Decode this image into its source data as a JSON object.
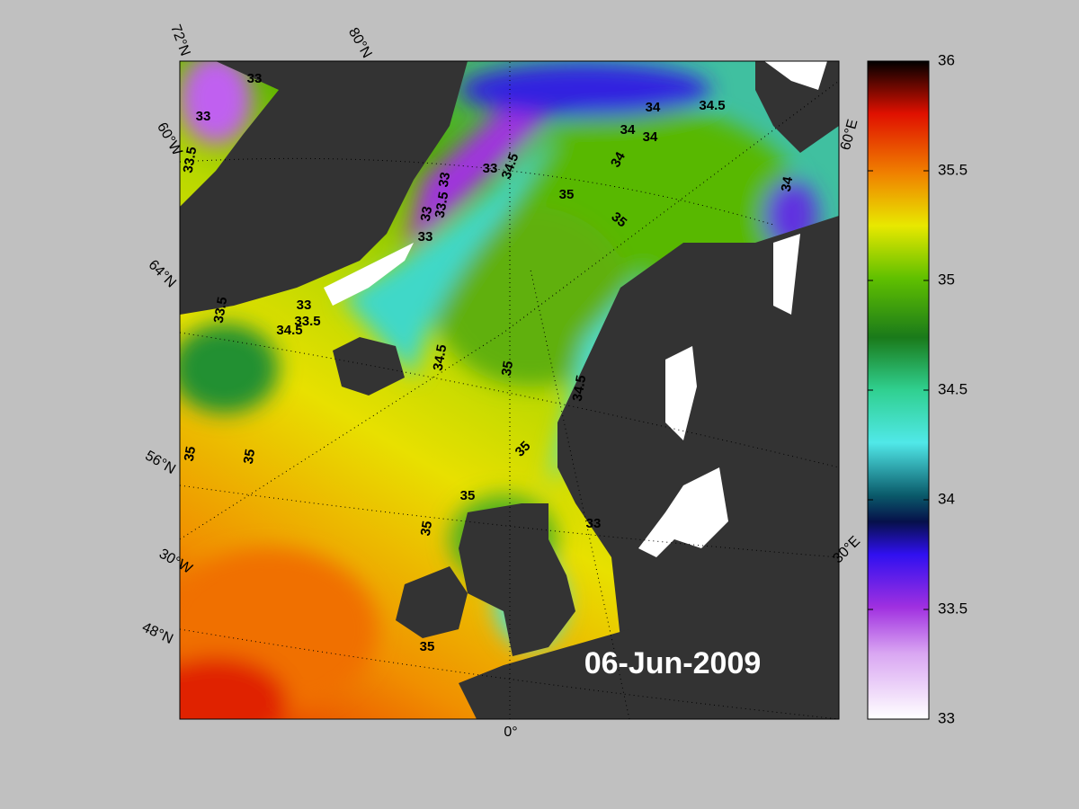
{
  "map": {
    "date": "06-Jun-2009",
    "graticule_labels": [
      "72°N",
      "80°N",
      "60°W",
      "64°N",
      "56°N",
      "30°W",
      "48°N",
      "0°",
      "30°E",
      "60°E"
    ],
    "contour_labels": [
      33,
      33,
      33.5,
      33,
      34.5,
      33,
      33.5,
      33,
      33,
      35,
      35,
      34,
      34.5,
      34,
      34,
      34,
      34,
      33,
      33.5,
      34.5,
      33.5,
      34.5,
      35,
      34.5,
      35,
      35,
      35,
      35,
      35,
      35,
      33
    ],
    "colorbar": {
      "lim": [
        33,
        36
      ],
      "ticks": [
        33,
        33.5,
        34,
        34.5,
        35,
        35.5,
        36
      ]
    }
  }
}
